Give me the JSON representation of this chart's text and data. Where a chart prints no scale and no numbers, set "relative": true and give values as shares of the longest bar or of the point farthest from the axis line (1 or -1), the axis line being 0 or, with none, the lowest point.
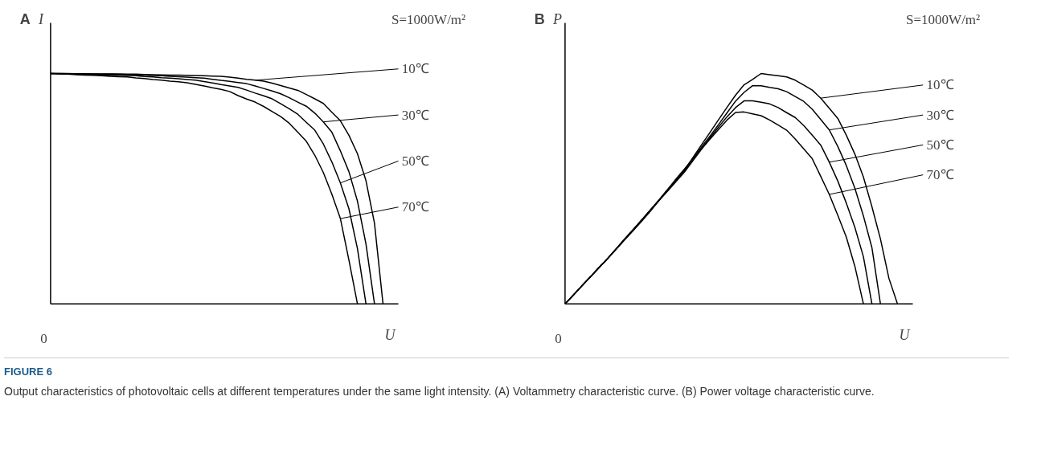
{
  "chart_data": [
    {
      "type": "line",
      "title": "A",
      "xlabel": "U",
      "ylabel": "I",
      "relative": true,
      "legend": "right",
      "marker": "none",
      "line_style": "solid",
      "annotations": [
        "S=1000W/m²",
        "0",
        "FIGURE 6",
        "Output characteristics of photovoltaic cells at different temperatures under the same light intensity. (A) Voltammetry characteristic curve. (B) Power voltage characteristic curve."
      ],
      "categories": [
        null,
        null,
        null,
        null,
        null,
        null,
        null,
        null,
        null,
        null,
        null,
        null,
        null,
        null,
        null,
        null,
        null,
        null,
        null,
        null,
        null,
        null,
        null,
        null,
        null,
        null,
        null,
        null,
        null,
        null,
        null,
        null,
        null,
        null,
        null,
        null,
        null,
        null,
        null,
        null,
        null
      ],
      "series": [
        {
          "name": "10℃",
          "color": "#000000",
          "values": [
            1,
            1,
            1,
            0.999,
            0.999,
            0.998,
            0.998,
            0.998,
            0.998,
            0.997,
            0.997,
            0.996,
            0.995,
            0.994,
            0.993,
            0.993,
            0.992,
            0.991,
            0.99,
            0.989,
            0.988,
            0.984,
            0.98,
            0.975,
            0.971,
            0.967,
            0.958,
            0.948,
            0.937,
            0.927,
            0.909,
            0.89,
            0.87,
            0.832,
            0.795,
            0.732,
            0.652,
            0.535,
            0.35,
            0,
            null
          ]
        },
        {
          "name": "30℃",
          "color": "#000000",
          "values": [
            1,
            1,
            0.999,
            0.999,
            0.998,
            0.998,
            0.997,
            0.997,
            0.996,
            0.996,
            0.995,
            0.993,
            0.991,
            0.99,
            0.988,
            0.986,
            0.984,
            0.982,
            0.98,
            0.975,
            0.97,
            0.966,
            0.961,
            0.956,
            0.946,
            0.935,
            0.924,
            0.912,
            0.895,
            0.876,
            0.858,
            0.828,
            0.79,
            0.745,
            0.664,
            0.574,
            0.446,
            0.26,
            0,
            null,
            null
          ]
        },
        {
          "name": "50℃",
          "color": "#000000",
          "values": [
            1,
            0.999,
            0.998,
            0.997,
            0.996,
            0.995,
            0.994,
            0.993,
            0.992,
            0.991,
            0.99,
            0.987,
            0.985,
            0.982,
            0.98,
            0.977,
            0.974,
            0.971,
            0.965,
            0.959,
            0.952,
            0.946,
            0.94,
            0.928,
            0.915,
            0.903,
            0.89,
            0.869,
            0.847,
            0.823,
            0.788,
            0.754,
            0.694,
            0.616,
            0.525,
            0.413,
            0.24,
            0,
            null,
            null,
            null
          ]
        },
        {
          "name": "70℃",
          "color": "#000000",
          "values": [
            1,
            0.998,
            0.997,
            0.995,
            0.993,
            0.992,
            0.99,
            0.988,
            0.986,
            0.985,
            0.981,
            0.978,
            0.974,
            0.971,
            0.967,
            0.964,
            0.96,
            0.953,
            0.946,
            0.938,
            0.931,
            0.922,
            0.904,
            0.889,
            0.876,
            0.857,
            0.835,
            0.813,
            0.784,
            0.745,
            0.706,
            0.645,
            0.57,
            0.476,
            0.37,
            0.19,
            0,
            null,
            null,
            null,
            null
          ]
        }
      ]
    },
    {
      "type": "line",
      "title": "B",
      "xlabel": "U",
      "ylabel": "P",
      "relative": true,
      "legend": "right",
      "marker": "none",
      "line_style": "solid",
      "annotations": [
        "S=1000W/m²",
        "0"
      ],
      "categories": [
        null,
        null,
        null,
        null,
        null,
        null,
        null,
        null,
        null,
        null,
        null,
        null,
        null,
        null,
        null,
        null,
        null,
        null,
        null,
        null,
        null,
        null,
        null,
        null,
        null,
        null,
        null,
        null,
        null,
        null,
        null,
        null,
        null,
        null,
        null,
        null,
        null,
        null,
        null,
        null,
        null
      ],
      "series": [
        {
          "name": "10℃",
          "color": "#000000",
          "values": [
            0,
            0.039,
            0.079,
            0.118,
            0.158,
            0.197,
            0.239,
            0.281,
            0.322,
            0.364,
            0.407,
            0.45,
            0.494,
            0.537,
            0.581,
            0.635,
            0.69,
            0.744,
            0.799,
            0.853,
            0.906,
            0.951,
            0.974,
            1,
            0.995,
            0.99,
            0.985,
            0.971,
            0.95,
            0.928,
            0.893,
            0.849,
            0.805,
            0.732,
            0.65,
            0.551,
            0.422,
            0.282,
            0.11,
            0,
            null
          ]
        },
        {
          "name": "30℃",
          "color": "#000000",
          "values": [
            0,
            0.039,
            0.079,
            0.118,
            0.158,
            0.197,
            0.239,
            0.281,
            0.322,
            0.364,
            0.407,
            0.45,
            0.494,
            0.535,
            0.577,
            0.629,
            0.68,
            0.728,
            0.778,
            0.829,
            0.88,
            0.918,
            0.947,
            0.947,
            0.94,
            0.934,
            0.921,
            0.9,
            0.879,
            0.845,
            0.8,
            0.755,
            0.683,
            0.6,
            0.502,
            0.382,
            0.244,
            0,
            null,
            null,
            null
          ]
        },
        {
          "name": "50℃",
          "color": "#000000",
          "values": [
            0,
            0.039,
            0.079,
            0.118,
            0.158,
            0.197,
            0.239,
            0.281,
            0.322,
            0.364,
            0.405,
            0.447,
            0.488,
            0.53,
            0.572,
            0.621,
            0.671,
            0.72,
            0.767,
            0.812,
            0.852,
            0.881,
            0.881,
            0.875,
            0.868,
            0.852,
            0.83,
            0.809,
            0.774,
            0.732,
            0.689,
            0.615,
            0.533,
            0.437,
            0.332,
            0.205,
            0,
            null,
            null,
            null,
            null
          ]
        },
        {
          "name": "70℃",
          "color": "#000000",
          "values": [
            0,
            0.039,
            0.079,
            0.118,
            0.158,
            0.197,
            0.237,
            0.278,
            0.318,
            0.359,
            0.402,
            0.448,
            0.494,
            0.541,
            0.585,
            0.629,
            0.672,
            0.715,
            0.757,
            0.798,
            0.831,
            0.833,
            0.825,
            0.817,
            0.798,
            0.776,
            0.754,
            0.716,
            0.673,
            0.63,
            0.553,
            0.475,
            0.384,
            0.289,
            0.163,
            0,
            null,
            null,
            null,
            null,
            null
          ]
        }
      ]
    }
  ]
}
